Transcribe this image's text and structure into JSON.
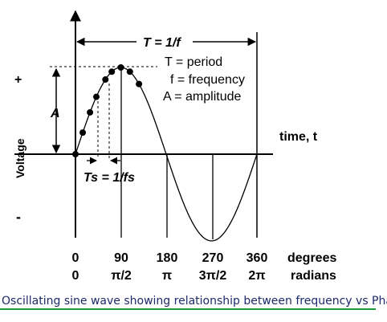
{
  "diagram": {
    "period_label": "T = 1/f",
    "legend": [
      "T = period",
      "f = frequency",
      "A = amplitude"
    ],
    "axis_y": {
      "label": "Voltage",
      "plus": "+",
      "minus": "-",
      "amplitude": "A"
    },
    "axis_x": {
      "label": "time, t"
    },
    "sampling_label": "Ts = 1/fs",
    "degrees": {
      "unit": "degrees",
      "ticks": [
        "0",
        "90",
        "180",
        "270",
        "360"
      ]
    },
    "radians": {
      "unit": "radians",
      "ticks": [
        "0",
        "π/2",
        "π",
        "3π/2",
        "2π"
      ]
    }
  },
  "caption": "Oscillating sine wave showing relationship between frequency vs Phase",
  "colors": {
    "caption_text": "#1d2a6b",
    "caption_underline": "#1a9a3a"
  }
}
